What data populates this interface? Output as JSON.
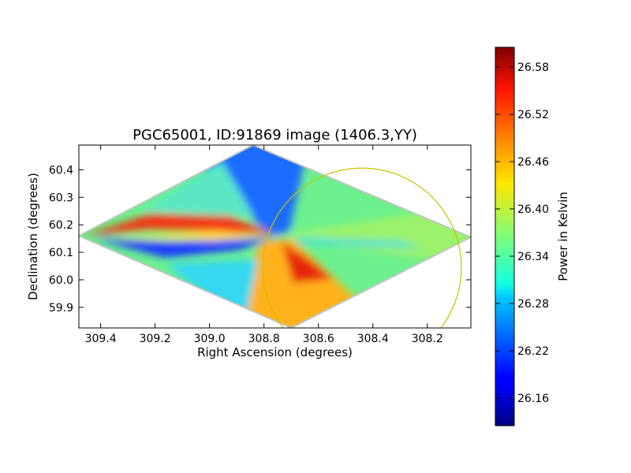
{
  "chart_data": {
    "type": "heatmap",
    "title": "PGC65001, ID:91869 image (1406.3,YY)",
    "xlabel": "Right Ascension (degrees)",
    "ylabel": "Declination (degrees)",
    "xlim": [
      309.48,
      308.04
    ],
    "ylim": [
      59.825,
      60.49
    ],
    "x_ticks": [
      309.4,
      309.2,
      309.0,
      308.8,
      308.6,
      308.4,
      308.2
    ],
    "x_tick_labels": [
      "309.4",
      "309.2",
      "309.0",
      "308.8",
      "308.6",
      "308.4",
      "308.2"
    ],
    "y_ticks": [
      59.9,
      60.0,
      60.1,
      60.2,
      60.3,
      60.4
    ],
    "y_tick_labels": [
      "59.9",
      "60.0",
      "60.1",
      "60.2",
      "60.3",
      "60.4"
    ],
    "footprint": {
      "shape": "diamond",
      "vertices": [
        [
          309.48,
          60.16
        ],
        [
          308.84,
          60.49
        ],
        [
          308.04,
          60.155
        ],
        [
          308.7,
          59.825
        ]
      ],
      "center": [
        308.75,
        60.16
      ]
    },
    "circle": {
      "center_ra": 308.44,
      "center_dec": 60.045,
      "radius_ra_deg": 0.365,
      "color": "#c8c000"
    },
    "colorbar": {
      "label": "Power in Kelvin",
      "range": [
        26.125,
        26.605
      ],
      "ticks": [
        26.16,
        26.22,
        26.28,
        26.34,
        26.4,
        26.46,
        26.52,
        26.58
      ],
      "tick_labels": [
        "26.16",
        "26.22",
        "26.28",
        "26.34",
        "26.40",
        "26.46",
        "26.52",
        "26.58"
      ],
      "colormap": "jet"
    },
    "grid": false
  }
}
